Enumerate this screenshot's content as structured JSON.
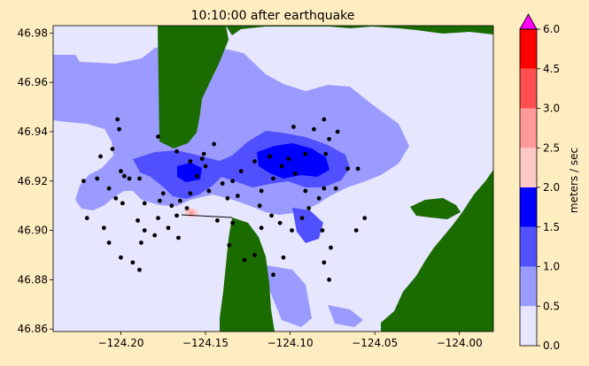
{
  "chart_data": {
    "type": "heatmap",
    "title": "10:10:00 after earthquake",
    "xlabel": "",
    "ylabel": "",
    "xlim": [
      -124.24,
      -123.98
    ],
    "ylim": [
      46.859,
      46.983
    ],
    "x_ticks": [
      -124.2,
      -124.15,
      -124.1,
      -124.05,
      -124.0
    ],
    "x_tick_labels": [
      "−124.20",
      "−124.15",
      "−124.10",
      "−124.05",
      "−124.00"
    ],
    "y_ticks": [
      46.86,
      46.88,
      46.9,
      46.92,
      46.94,
      46.96,
      46.98
    ],
    "y_tick_labels": [
      "46.86",
      "46.88",
      "46.90",
      "46.92",
      "46.94",
      "46.96",
      "46.98"
    ],
    "colorbar": {
      "label": "meters / sec",
      "levels": [
        0.0,
        0.5,
        1.0,
        1.5,
        2.0,
        2.5,
        3.0,
        4.5,
        6.0
      ],
      "level_labels": [
        "0.0",
        "0.5",
        "1.0",
        "1.5",
        "2.0",
        "2.5",
        "3.0",
        "4.5",
        "6.0"
      ],
      "colors": [
        "#e6e6ff",
        "#9b9bff",
        "#5050ff",
        "#0000ff",
        "#ffc8c8",
        "#ff9a9a",
        "#ff5050",
        "#ff0000"
      ],
      "extend_color": "#ff00ff"
    },
    "land_color": "#1a6b00",
    "water_color": "#e6e6ff",
    "gauges": [
      [
        -124.202,
        46.945
      ],
      [
        -124.201,
        46.941
      ],
      [
        -124.205,
        46.933
      ],
      [
        -124.212,
        46.93
      ],
      [
        -124.222,
        46.92
      ],
      [
        -124.214,
        46.921
      ],
      [
        -124.207,
        46.917
      ],
      [
        -124.2,
        46.924
      ],
      [
        -124.198,
        46.922
      ],
      [
        -124.195,
        46.921
      ],
      [
        -124.189,
        46.921
      ],
      [
        -124.203,
        46.913
      ],
      [
        -124.199,
        46.911
      ],
      [
        -124.186,
        46.911
      ],
      [
        -124.177,
        46.912
      ],
      [
        -124.19,
        46.904
      ],
      [
        -124.22,
        46.905
      ],
      [
        -124.21,
        46.901
      ],
      [
        -124.207,
        46.895
      ],
      [
        -124.2,
        46.889
      ],
      [
        -124.193,
        46.887
      ],
      [
        -124.189,
        46.884
      ],
      [
        -124.188,
        46.895
      ],
      [
        -124.186,
        46.9
      ],
      [
        -124.18,
        46.898
      ],
      [
        -124.178,
        46.905
      ],
      [
        -124.175,
        46.915
      ],
      [
        -124.17,
        46.91
      ],
      [
        -124.172,
        46.901
      ],
      [
        -124.166,
        46.897
      ],
      [
        -124.167,
        46.906
      ],
      [
        -124.165,
        46.912
      ],
      [
        -124.161,
        46.909
      ],
      [
        -124.159,
        46.915
      ],
      [
        -124.155,
        46.922
      ],
      [
        -124.15,
        46.926
      ],
      [
        -124.152,
        46.929
      ],
      [
        -124.151,
        46.931
      ],
      [
        -124.145,
        46.935
      ],
      [
        -124.148,
        46.916
      ],
      [
        -124.14,
        46.919
      ],
      [
        -124.137,
        46.913
      ],
      [
        -124.131,
        46.914
      ],
      [
        -124.134,
        46.92
      ],
      [
        -124.129,
        46.924
      ],
      [
        -124.121,
        46.928
      ],
      [
        -124.112,
        46.93
      ],
      [
        -124.105,
        46.926
      ],
      [
        -124.101,
        46.929
      ],
      [
        -124.097,
        46.923
      ],
      [
        -124.11,
        46.921
      ],
      [
        -124.117,
        46.916
      ],
      [
        -124.118,
        46.91
      ],
      [
        -124.111,
        46.906
      ],
      [
        -124.106,
        46.903
      ],
      [
        -124.099,
        46.9
      ],
      [
        -124.093,
        46.905
      ],
      [
        -124.089,
        46.909
      ],
      [
        -124.091,
        46.916
      ],
      [
        -124.083,
        46.913
      ],
      [
        -124.08,
        46.917
      ],
      [
        -124.073,
        46.917
      ],
      [
        -124.066,
        46.925
      ],
      [
        -124.06,
        46.925
      ],
      [
        -124.056,
        46.905
      ],
      [
        -124.061,
        46.9
      ],
      [
        -124.081,
        46.9
      ],
      [
        -124.076,
        46.893
      ],
      [
        -124.08,
        46.887
      ],
      [
        -124.077,
        46.88
      ],
      [
        -124.104,
        46.889
      ],
      [
        -124.11,
        46.882
      ],
      [
        -124.121,
        46.89
      ],
      [
        -124.127,
        46.888
      ],
      [
        -124.136,
        46.894
      ],
      [
        -124.117,
        46.901
      ],
      [
        -124.134,
        46.903
      ],
      [
        -124.143,
        46.904
      ],
      [
        -124.091,
        46.931
      ],
      [
        -124.086,
        46.941
      ],
      [
        -124.08,
        46.945
      ],
      [
        -124.077,
        46.937
      ],
      [
        -124.072,
        46.94
      ],
      [
        -124.079,
        46.931
      ],
      [
        -124.098,
        46.942
      ],
      [
        -124.159,
        46.928
      ],
      [
        -124.167,
        46.932
      ],
      [
        -124.178,
        46.938
      ]
    ]
  }
}
